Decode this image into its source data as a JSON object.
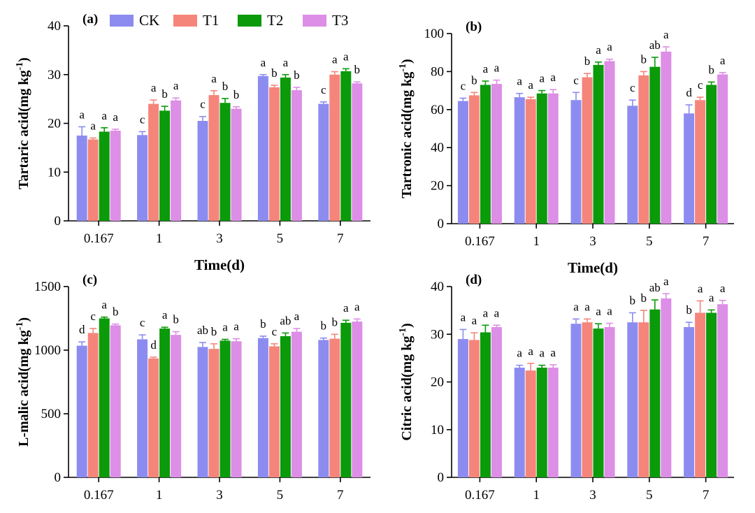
{
  "colors": {
    "CK": "#8c8cf0",
    "T1": "#f5857b",
    "T2": "#0a9a0a",
    "T3": "#dd8ee6"
  },
  "legend": [
    "CK",
    "T1",
    "T2",
    "T3"
  ],
  "chart_data": [
    {
      "panel": "(a)",
      "type": "bar",
      "ylabel": "Tartaric acid(mg kg-1)",
      "xlabel": "Time(d)",
      "show_xlabel": true,
      "categories": [
        "0.167",
        "1",
        "3",
        "5",
        "7"
      ],
      "ylim": [
        0,
        40
      ],
      "yticks": [
        0,
        10,
        20,
        30,
        40
      ],
      "series": [
        {
          "name": "CK",
          "values": [
            17.5,
            17.6,
            20.5,
            29.7,
            24.0
          ],
          "errors": [
            1.8,
            0.7,
            0.9,
            0.3,
            0.4
          ]
        },
        {
          "name": "T1",
          "values": [
            16.7,
            24.0,
            25.8,
            27.4,
            30.0
          ],
          "errors": [
            0.3,
            0.8,
            0.9,
            0.4,
            0.6
          ]
        },
        {
          "name": "T2",
          "values": [
            18.3,
            22.6,
            24.2,
            29.4,
            30.7
          ],
          "errors": [
            0.8,
            0.9,
            0.9,
            0.6,
            0.5
          ]
        },
        {
          "name": "T3",
          "values": [
            18.5,
            24.7,
            23.0,
            26.8,
            28.2
          ],
          "errors": [
            0.3,
            0.5,
            0.4,
            0.6,
            0.3
          ]
        }
      ],
      "letters": [
        [
          "a",
          "a",
          "a",
          "a"
        ],
        [
          "c",
          "a",
          "b",
          "a"
        ],
        [
          "c",
          "a",
          "b",
          "b"
        ],
        [
          "a",
          "b",
          "a",
          "b"
        ],
        [
          "c",
          "a",
          "a",
          "b"
        ]
      ]
    },
    {
      "panel": "(b)",
      "type": "bar",
      "ylabel": "Tartronic acid(mg kg-1)",
      "xlabel": "Time(d)",
      "show_xlabel": true,
      "categories": [
        "0.167",
        "1",
        "3",
        "5",
        "7"
      ],
      "ylim": [
        0,
        100
      ],
      "yticks": [
        0,
        20,
        40,
        60,
        80,
        100
      ],
      "series": [
        {
          "name": "CK",
          "values": [
            64.5,
            66.5,
            65.0,
            62.0,
            58.0
          ],
          "errors": [
            1.5,
            2.0,
            4.0,
            3.0,
            4.5
          ]
        },
        {
          "name": "T1",
          "values": [
            67.5,
            65.5,
            77.0,
            78.0,
            65.0
          ],
          "errors": [
            1.5,
            1.0,
            2.0,
            2.0,
            1.5
          ]
        },
        {
          "name": "T2",
          "values": [
            73.0,
            68.5,
            83.5,
            82.5,
            73.0
          ],
          "errors": [
            2.0,
            1.5,
            1.5,
            5.0,
            1.5
          ]
        },
        {
          "name": "T3",
          "values": [
            73.5,
            68.5,
            85.5,
            90.5,
            78.5
          ],
          "errors": [
            2.0,
            2.0,
            1.0,
            2.5,
            1.0
          ]
        }
      ],
      "letters": [
        [
          "c",
          "b",
          "a",
          "a"
        ],
        [
          "a",
          "a",
          "a",
          "a"
        ],
        [
          "c",
          "b",
          "a",
          "a"
        ],
        [
          "c",
          "b",
          "ab",
          "a"
        ],
        [
          "d",
          "c",
          "b",
          "a"
        ]
      ]
    },
    {
      "panel": "(c)",
      "type": "bar",
      "ylabel": "L-malic acid(mg kg-1)",
      "xlabel": "",
      "show_xlabel": false,
      "categories": [
        "0.167",
        "1",
        "3",
        "5",
        "7"
      ],
      "ylim": [
        0,
        1500
      ],
      "yticks": [
        0,
        500,
        1000,
        1500
      ],
      "series": [
        {
          "name": "CK",
          "values": [
            1035,
            1085,
            1025,
            1095,
            1080
          ],
          "errors": [
            30,
            35,
            35,
            15,
            15
          ]
        },
        {
          "name": "T1",
          "values": [
            1135,
            935,
            1010,
            1030,
            1090
          ],
          "errors": [
            35,
            10,
            40,
            20,
            35
          ]
        },
        {
          "name": "T2",
          "values": [
            1250,
            1170,
            1075,
            1110,
            1215
          ],
          "errors": [
            10,
            10,
            10,
            25,
            20
          ]
        },
        {
          "name": "T3",
          "values": [
            1195,
            1120,
            1070,
            1145,
            1225
          ],
          "errors": [
            10,
            25,
            20,
            25,
            20
          ]
        }
      ],
      "letters": [
        [
          "d",
          "c",
          "a",
          "b"
        ],
        [
          "c",
          "d",
          "a",
          "b"
        ],
        [
          "ab",
          "b",
          "a",
          "a"
        ],
        [
          "b",
          "c",
          "ab",
          "a"
        ],
        [
          "b",
          "b",
          "a",
          "a"
        ]
      ]
    },
    {
      "panel": "(d)",
      "type": "bar",
      "ylabel": "Citric acid(mg kg-1)",
      "xlabel": "",
      "show_xlabel": false,
      "categories": [
        "0.167",
        "1",
        "3",
        "5",
        "7"
      ],
      "ylim": [
        0,
        40
      ],
      "yticks": [
        0,
        10,
        20,
        30,
        40
      ],
      "series": [
        {
          "name": "CK",
          "values": [
            29.0,
            23.0,
            32.2,
            32.5,
            31.5
          ],
          "errors": [
            2.0,
            0.5,
            1.0,
            2.0,
            1.0
          ]
        },
        {
          "name": "T1",
          "values": [
            28.8,
            22.4,
            32.5,
            32.5,
            34.5
          ],
          "errors": [
            1.5,
            1.5,
            0.7,
            2.5,
            2.5
          ]
        },
        {
          "name": "T2",
          "values": [
            30.4,
            23.0,
            31.2,
            35.2,
            34.5
          ],
          "errors": [
            1.5,
            0.5,
            1.0,
            2.0,
            0.6
          ]
        },
        {
          "name": "T3",
          "values": [
            31.5,
            23.0,
            31.5,
            37.5,
            36.3
          ],
          "errors": [
            0.4,
            0.6,
            0.8,
            1.0,
            0.8
          ]
        }
      ],
      "letters": [
        [
          "a",
          "a",
          "a",
          "a"
        ],
        [
          "a",
          "a",
          "a",
          "a"
        ],
        [
          "a",
          "a",
          "a",
          "a"
        ],
        [
          "b",
          "b",
          "ab",
          "a"
        ],
        [
          "b",
          "a",
          "a",
          "a"
        ]
      ]
    }
  ]
}
